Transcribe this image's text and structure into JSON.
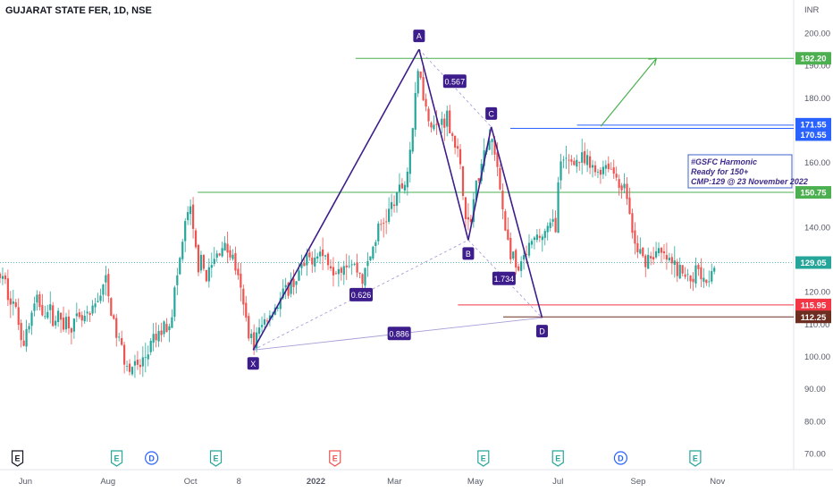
{
  "chart_data": {
    "type": "candlestick",
    "title": "GUJARAT STATE FER, 1D, NSE",
    "currency": "INR",
    "ylim": [
      65,
      205
    ],
    "y_ticks": [
      70,
      80,
      90,
      100,
      110,
      120,
      130,
      140,
      150,
      160,
      170,
      180,
      190,
      200
    ],
    "x_ticks": [
      "Jun",
      "Aug",
      "Oct",
      "8",
      "2022",
      "Mar",
      "May",
      "Jul",
      "Sep",
      "Nov"
    ],
    "grid": true,
    "colors": {
      "up": "#26a69a",
      "down": "#ef5350",
      "pattern": "#3d1d8c",
      "target": "#4caf50",
      "resistance": "#2962ff",
      "support": "#f23645",
      "stop": "#7a3b2e",
      "current": "#26a69a"
    },
    "price_levels": [
      {
        "name": "target",
        "value": 192.2,
        "label": "192.20",
        "color": "#4caf50"
      },
      {
        "name": "resistance-1",
        "value": 171.55,
        "label": "171.55",
        "color": "#2962ff"
      },
      {
        "name": "resistance-2",
        "value": 170.55,
        "label": "170.55",
        "color": "#2962ff"
      },
      {
        "name": "breakout",
        "value": 150.75,
        "label": "150.75",
        "color": "#4caf50"
      },
      {
        "name": "current",
        "value": 129.05,
        "label": "129.05",
        "color": "#26a69a"
      },
      {
        "name": "support",
        "value": 115.95,
        "label": "115.95",
        "color": "#f23645"
      },
      {
        "name": "stop",
        "value": 112.25,
        "label": "112.25",
        "color": "#6d2e22"
      }
    ],
    "pattern_points": [
      {
        "label": "X",
        "x": 0.319,
        "value": 102.0
      },
      {
        "label": "A",
        "x": 0.528,
        "value": 195.0
      },
      {
        "label": "B",
        "x": 0.59,
        "value": 136.0
      },
      {
        "label": "C",
        "x": 0.619,
        "value": 171.0
      },
      {
        "label": "D",
        "x": 0.683,
        "value": 112.0
      }
    ],
    "ratios": [
      {
        "label": "0.567",
        "x": 0.573,
        "value": 185
      },
      {
        "label": "0.626",
        "x": 0.455,
        "value": 119
      },
      {
        "label": "1.734",
        "x": 0.635,
        "value": 124
      },
      {
        "label": "0.886",
        "x": 0.503,
        "value": 107
      }
    ],
    "annotation": [
      "#GSFC Harmonic",
      "Ready for 150+",
      "CMP:129 @ 23 November 2022"
    ],
    "events": [
      {
        "type": "E",
        "x": 0.022
      },
      {
        "type": "E",
        "x": 0.147
      },
      {
        "type": "D",
        "x": 0.191
      },
      {
        "type": "E",
        "x": 0.272
      },
      {
        "type": "E",
        "x": 0.422
      },
      {
        "type": "E",
        "x": 0.609
      },
      {
        "type": "E",
        "x": 0.703
      },
      {
        "type": "D",
        "x": 0.782
      },
      {
        "type": "E",
        "x": 0.876
      }
    ],
    "series_anchors": [
      [
        0.0,
        125
      ],
      [
        0.015,
        118
      ],
      [
        0.03,
        105
      ],
      [
        0.045,
        117
      ],
      [
        0.07,
        112
      ],
      [
        0.095,
        110
      ],
      [
        0.115,
        112
      ],
      [
        0.132,
        124
      ],
      [
        0.145,
        108
      ],
      [
        0.16,
        98
      ],
      [
        0.175,
        96
      ],
      [
        0.19,
        103
      ],
      [
        0.215,
        112
      ],
      [
        0.23,
        135
      ],
      [
        0.238,
        147
      ],
      [
        0.248,
        130
      ],
      [
        0.262,
        125
      ],
      [
        0.28,
        135
      ],
      [
        0.295,
        130
      ],
      [
        0.308,
        113
      ],
      [
        0.319,
        104
      ],
      [
        0.335,
        112
      ],
      [
        0.355,
        118
      ],
      [
        0.375,
        125
      ],
      [
        0.4,
        133
      ],
      [
        0.42,
        128
      ],
      [
        0.44,
        130
      ],
      [
        0.458,
        124
      ],
      [
        0.475,
        138
      ],
      [
        0.495,
        147
      ],
      [
        0.512,
        155
      ],
      [
        0.522,
        175
      ],
      [
        0.528,
        191
      ],
      [
        0.537,
        176
      ],
      [
        0.55,
        170
      ],
      [
        0.562,
        175
      ],
      [
        0.575,
        165
      ],
      [
        0.59,
        140
      ],
      [
        0.604,
        157
      ],
      [
        0.619,
        168
      ],
      [
        0.628,
        155
      ],
      [
        0.64,
        135
      ],
      [
        0.652,
        125
      ],
      [
        0.664,
        132
      ],
      [
        0.676,
        136
      ],
      [
        0.69,
        139
      ],
      [
        0.7,
        142
      ],
      [
        0.705,
        158
      ],
      [
        0.72,
        161
      ],
      [
        0.735,
        160
      ],
      [
        0.75,
        157
      ],
      [
        0.765,
        160
      ],
      [
        0.778,
        155
      ],
      [
        0.79,
        150
      ],
      [
        0.798,
        135
      ],
      [
        0.81,
        130
      ],
      [
        0.825,
        132
      ],
      [
        0.84,
        130
      ],
      [
        0.855,
        126
      ],
      [
        0.87,
        124
      ],
      [
        0.88,
        128
      ],
      [
        0.89,
        124
      ],
      [
        0.9,
        129.05
      ]
    ]
  }
}
